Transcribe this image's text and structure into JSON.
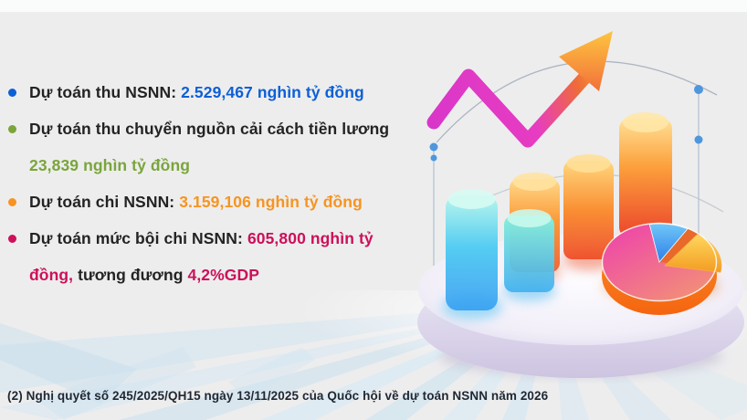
{
  "colors": {
    "blue": "#0d5fd6",
    "green": "#7aa53b",
    "orange": "#f79420",
    "pink": "#cd1059",
    "text": "#232323",
    "background": "#ededee",
    "rays": "#cfe4f1"
  },
  "bullets": [
    {
      "dot": "blue",
      "lines": [
        [
          {
            "t": "Dự toán thu NSNN: "
          },
          {
            "t": "2.529,467  nghìn tỷ đồng",
            "c": "blue"
          }
        ]
      ]
    },
    {
      "dot": "green",
      "lines": [
        [
          {
            "t": "Dự toán thu chuyển nguồn cải cách tiền lương"
          }
        ],
        [
          {
            "t": "23,839 nghìn tỷ đồng",
            "c": "green"
          }
        ]
      ]
    },
    {
      "dot": "orange",
      "lines": [
        [
          {
            "t": "Dự toán chi NSNN: "
          },
          {
            "t": "3.159,106 nghìn tỷ đồng",
            "c": "orange"
          }
        ]
      ]
    },
    {
      "dot": "pink",
      "lines": [
        [
          {
            "t": "Dự toán mức bội chi NSNN: "
          },
          {
            "t": "605,800 nghìn tỷ",
            "c": "pink"
          }
        ],
        [
          {
            "t": "đồng,",
            "c": "pink"
          },
          {
            "t": " tương đương "
          },
          {
            "t": "4,2%GDP",
            "c": "pink"
          }
        ]
      ]
    }
  ],
  "page": {
    "footnote": "(2) Nghị quyết số 245/2025/QH15 ngày 13/11/2025 của Quốc hội về dự toán NSNN năm 2026"
  },
  "illustration": {
    "icons": [
      "trend-arrow-icon",
      "bar-chart-3d-icon",
      "pie-chart-3d-icon",
      "podium-icon",
      "orbit-arcs",
      "guide-dots",
      "rays-background-icon"
    ]
  }
}
